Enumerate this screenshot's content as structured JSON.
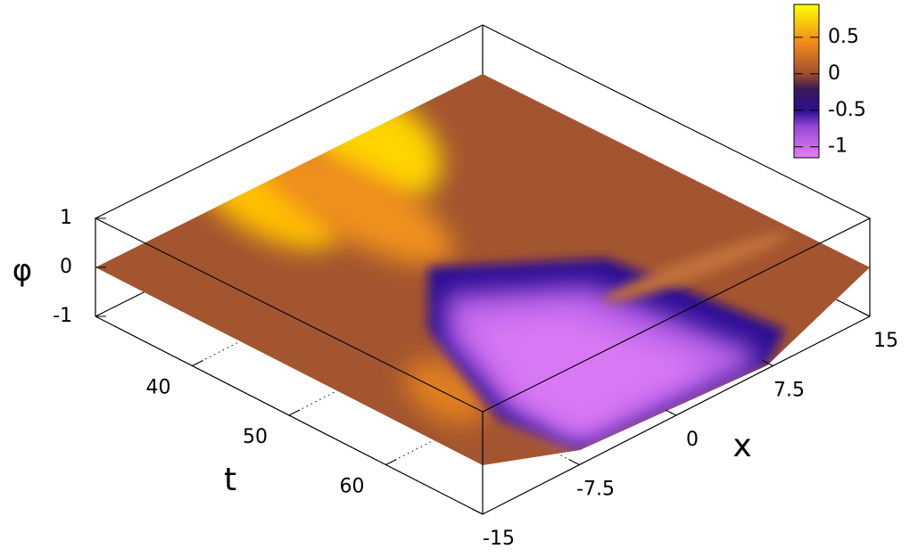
{
  "chart_data": {
    "type": "surface",
    "xlabel": "x",
    "ylabel": "t",
    "zlabel": "φ",
    "xlim": [
      -15,
      15
    ],
    "xticks": [
      -15,
      -7.5,
      0,
      7.5,
      15
    ],
    "ylim": [
      30,
      70
    ],
    "yticks": [
      40,
      50,
      60
    ],
    "zlim": [
      -1,
      1
    ],
    "zticks": [
      -1,
      0,
      1
    ],
    "cblim": [
      -1.15,
      0.95
    ],
    "cbticks": [
      -1,
      -0.5,
      0,
      0.5
    ],
    "grid": true
  }
}
